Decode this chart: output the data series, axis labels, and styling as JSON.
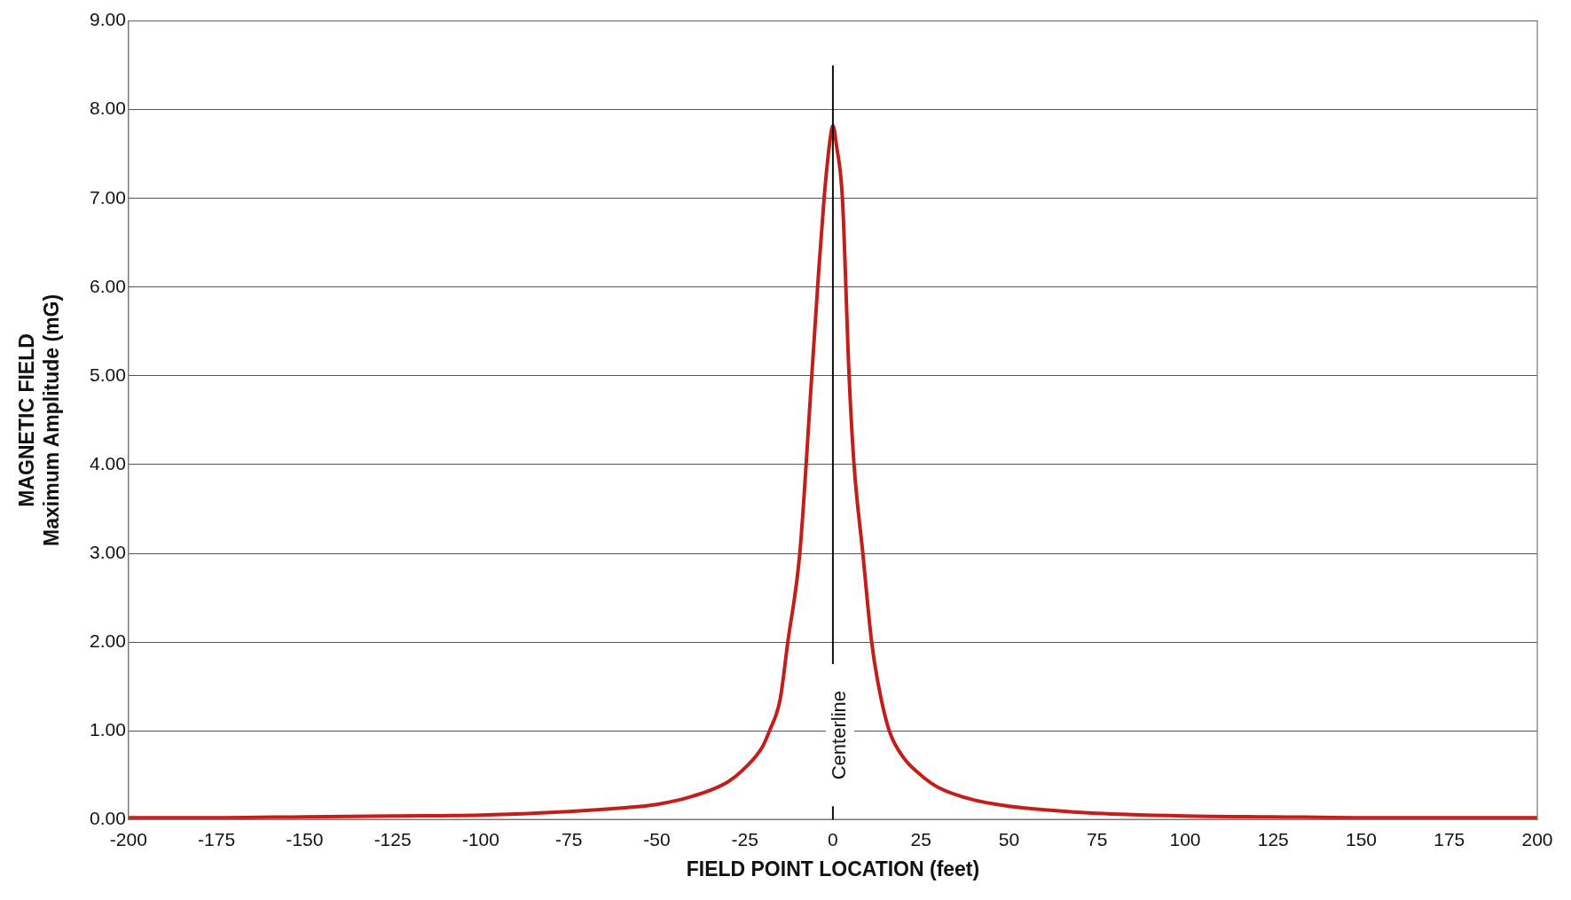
{
  "chart_data": {
    "type": "line",
    "xlabel": "FIELD POINT LOCATION (feet)",
    "ylabel": "MAGNETIC FIELD\nMaximum Amplitude (mG)",
    "xlim": [
      -200,
      200
    ],
    "xticks": [
      -200,
      -175,
      -150,
      -125,
      -100,
      -75,
      -50,
      -25,
      0,
      25,
      50,
      75,
      100,
      125,
      150,
      175,
      200
    ],
    "ylim": [
      0,
      9
    ],
    "yticks": [
      {
        "value": 0,
        "label": "0.00"
      },
      {
        "value": 1,
        "label": "1.00"
      },
      {
        "value": 2,
        "label": "2.00"
      },
      {
        "value": 3,
        "label": "3.00"
      },
      {
        "value": 4,
        "label": "4.00"
      },
      {
        "value": 5,
        "label": "5.00"
      },
      {
        "value": 6,
        "label": "6.00"
      },
      {
        "value": 7,
        "label": "7.00"
      },
      {
        "value": 8,
        "label": "8.00"
      },
      {
        "value": 9,
        "label": "9.00"
      }
    ],
    "grid": "y",
    "legend": false,
    "marker": "none",
    "line_style": "solid",
    "ref_lines": [
      {
        "axis": "x",
        "value": 0,
        "label": "Centerline",
        "color": "#111111"
      }
    ],
    "series": [
      {
        "color": "#c41e1a",
        "x": [
          -200,
          -175,
          -150,
          -125,
          -100,
          -75,
          -60,
          -50,
          -40,
          -30,
          -25,
          -20,
          -18,
          -15,
          -12.8,
          -9.4,
          -6,
          -4,
          -2.5,
          -1,
          0,
          1,
          2.7,
          4.6,
          6,
          8.5,
          11,
          13,
          16,
          20,
          25,
          30,
          40,
          50,
          60,
          75,
          100,
          125,
          150,
          175,
          200
        ],
        "values": [
          0.02,
          0.02,
          0.03,
          0.04,
          0.05,
          0.09,
          0.13,
          0.17,
          0.26,
          0.42,
          0.58,
          0.82,
          1.0,
          1.35,
          2.0,
          3.0,
          5.0,
          6.2,
          7.0,
          7.6,
          7.82,
          7.6,
          7.0,
          5.0,
          4.0,
          3.0,
          2.0,
          1.5,
          1.0,
          0.7,
          0.5,
          0.36,
          0.22,
          0.15,
          0.11,
          0.07,
          0.04,
          0.03,
          0.02,
          0.02,
          0.02
        ]
      }
    ]
  }
}
